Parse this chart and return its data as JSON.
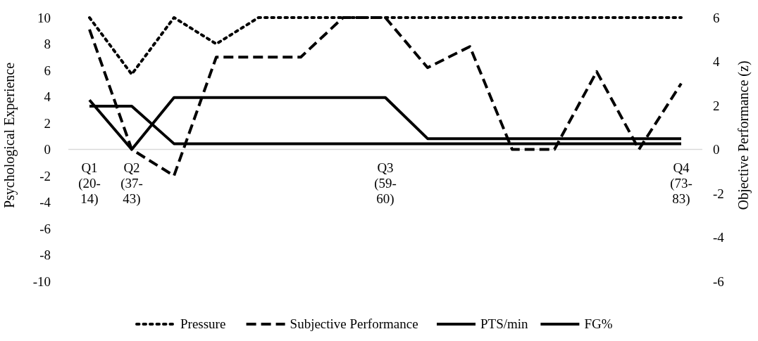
{
  "chart_data": {
    "type": "line",
    "ylabel": "Psychological Experience",
    "y2label": "Objective Performance (z)",
    "categories": [
      "Q1 (20-14)",
      "Q2 (37-43)",
      null,
      null,
      null,
      null,
      null,
      "Q3 (59-60)",
      null,
      null,
      null,
      null,
      null,
      null,
      "Q4 (73-83)"
    ],
    "ylim": [
      -10,
      10
    ],
    "yticks": [
      -10,
      -8,
      -6,
      -4,
      -2,
      0,
      2,
      4,
      6,
      8,
      10
    ],
    "y2lim": [
      -6,
      6
    ],
    "y2ticks": [
      -6,
      -4,
      -2,
      0,
      2,
      4,
      6
    ],
    "legend": "bottom",
    "grid": false,
    "series": [
      {
        "name": "Pressure",
        "color": "#000000",
        "line_style": "dotted",
        "values": [
          10,
          5.7,
          10,
          8,
          10,
          10,
          10,
          10,
          10,
          10,
          10,
          10,
          10,
          10,
          10
        ]
      },
      {
        "name": "Subjective Performance",
        "color": "#000000",
        "line_style": "dashed",
        "values": [
          9.1,
          0,
          -2,
          7,
          7,
          7,
          10,
          10,
          6.2,
          7.8,
          0,
          0,
          5.9,
          0,
          5
        ]
      },
      {
        "name": "PTS/min",
        "color": "#000000",
        "line_style": "solid",
        "axis": "y2",
        "values": [
          2.25,
          0,
          2.36,
          2.36,
          2.36,
          2.36,
          2.36,
          2.36,
          0.49,
          0.49,
          0.49,
          0.49,
          0.49,
          0.49,
          0.49
        ]
      },
      {
        "name": "FG%",
        "color": "#000000",
        "line_style": "solid",
        "axis": "y2",
        "values": [
          1.97,
          1.97,
          0.26,
          0.26,
          0.26,
          0.26,
          0.26,
          0.26,
          0.26,
          0.26,
          0.26,
          0.26,
          0.26,
          0.26,
          0.26
        ]
      }
    ]
  }
}
